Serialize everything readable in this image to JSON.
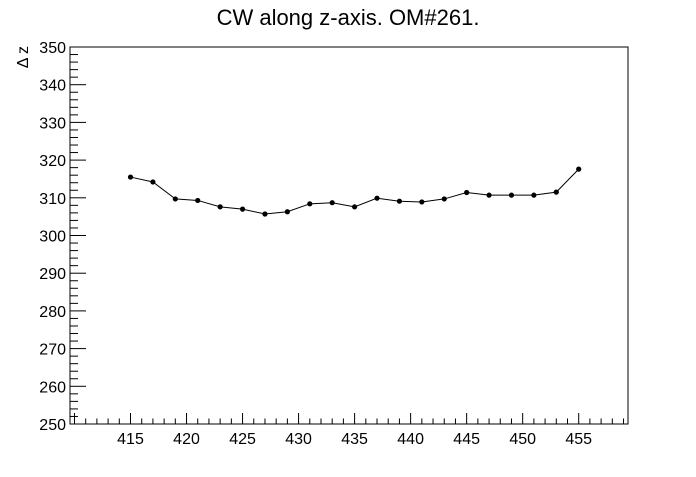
{
  "chart_data": {
    "type": "line",
    "title": "CW along z-axis. OM#261.",
    "xlabel": "",
    "ylabel": "Δ z",
    "xlim": [
      409.6,
      459.4
    ],
    "ylim": [
      250,
      350
    ],
    "xticks": [
      415,
      420,
      425,
      430,
      435,
      440,
      445,
      450,
      455
    ],
    "yticks": [
      250,
      260,
      270,
      280,
      290,
      300,
      310,
      320,
      330,
      340,
      350
    ],
    "grid": false,
    "legend": "none",
    "series": [
      {
        "x": [
          415,
          417,
          419,
          421,
          423,
          425,
          427,
          429,
          431,
          433,
          435,
          437,
          439,
          441,
          443,
          445,
          447,
          449,
          451,
          453,
          455
        ],
        "y": [
          315.5,
          314.2,
          309.7,
          309.3,
          307.6,
          307.0,
          305.7,
          306.3,
          308.4,
          308.7,
          307.6,
          309.9,
          309.1,
          308.9,
          309.7,
          311.4,
          310.7,
          310.7,
          310.7,
          311.5,
          317.6
        ]
      }
    ],
    "colors": {
      "line": "#000000",
      "marker": "#000000",
      "axis": "#000000"
    }
  }
}
